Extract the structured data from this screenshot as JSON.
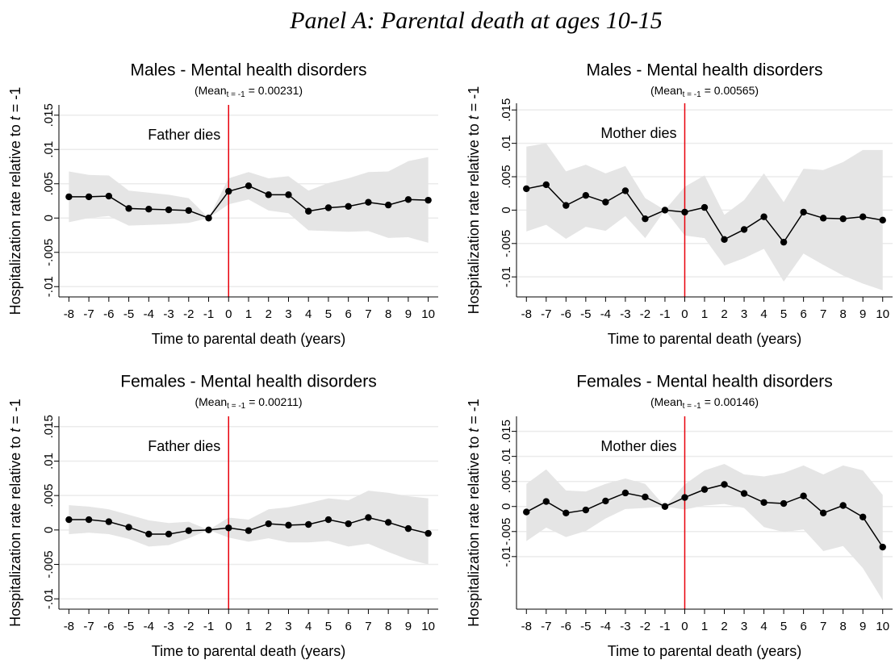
{
  "title": "Panel A: Parental death at ages 10-15",
  "chart_data": [
    {
      "type": "line",
      "title": "Males - Mental health disorders",
      "subtitle_parts": [
        "(Mean",
        "t = -1",
        "= 0.00231)"
      ],
      "ylabel_parts": [
        "Hospitalization rate relative to",
        "t",
        "= -1"
      ],
      "xlabel": "Time to parental death (years)",
      "annotation": "Father dies",
      "annotation_color": "#e8000b",
      "vline_x": 0,
      "x": [
        -8,
        -7,
        -6,
        -5,
        -4,
        -3,
        -2,
        -1,
        0,
        1,
        2,
        3,
        4,
        5,
        6,
        7,
        8,
        9,
        10
      ],
      "values": [
        0.0031,
        0.0031,
        0.0032,
        0.0014,
        0.0013,
        0.0012,
        0.0011,
        0,
        0.0039,
        0.0047,
        0.0034,
        0.0034,
        0.001,
        0.0015,
        0.0017,
        0.0023,
        0.0019,
        0.0027,
        0.0026
      ],
      "color": "#000000",
      "band": {
        "color": "#e5e5e5",
        "lower": [
          -0.0006,
          0,
          0.0003,
          -0.0011,
          -0.001,
          -0.0009,
          -0.0007,
          0,
          0.002,
          0.0027,
          0.0011,
          0.0007,
          -0.0018,
          -0.0019,
          -0.002,
          -0.0019,
          -0.0029,
          -0.0028,
          -0.0036
        ],
        "upper": [
          0.0068,
          0.0063,
          0.0062,
          0.004,
          0.0037,
          0.0034,
          0.0029,
          0,
          0.0058,
          0.0067,
          0.0058,
          0.0061,
          0.004,
          0.0051,
          0.0058,
          0.0067,
          0.0068,
          0.0083,
          0.0089
        ]
      },
      "xlim": [
        -8.5,
        10.5
      ],
      "ylim": [
        -0.0115,
        0.0165
      ],
      "xticks": [
        -8,
        -7,
        -6,
        -5,
        -4,
        -3,
        -2,
        -1,
        0,
        1,
        2,
        3,
        4,
        5,
        6,
        7,
        8,
        9,
        10
      ],
      "yticks": [
        {
          "value": -0.01,
          "label": "-.01"
        },
        {
          "value": -0.005,
          "label": "-.005"
        },
        0,
        {
          "value": 0.005,
          "label": ".005"
        },
        {
          "value": 0.01,
          "label": ".01"
        },
        {
          "value": 0.015,
          "label": ".015"
        }
      ],
      "grid": true
    },
    {
      "type": "line",
      "title": "Males - Mental health disorders",
      "subtitle_parts": [
        "(Mean",
        "t = -1",
        "= 0.00565)"
      ],
      "ylabel_parts": [
        "Hospitalization rate relative to",
        "t",
        "= -1"
      ],
      "xlabel": "Time to parental death (years)",
      "annotation": "Mother dies",
      "annotation_color": "#e8000b",
      "vline_x": 0,
      "x": [
        -8,
        -7,
        -6,
        -5,
        -4,
        -3,
        -2,
        -1,
        0,
        1,
        2,
        3,
        4,
        5,
        6,
        7,
        8,
        9,
        10
      ],
      "values": [
        0.0032,
        0.0038,
        0.0007,
        0.0022,
        0.0012,
        0.0029,
        -0.0013,
        0,
        -0.0003,
        0.0004,
        -0.0044,
        -0.0029,
        -0.001,
        -0.0048,
        -0.0003,
        -0.0012,
        -0.0013,
        -0.001,
        -0.0015
      ],
      "color": "#000000",
      "band": {
        "color": "#e5e5e5",
        "lower": [
          -0.0032,
          -0.0022,
          -0.0043,
          -0.0025,
          -0.0031,
          -0.0009,
          -0.0042,
          0,
          -0.0038,
          -0.0042,
          -0.0083,
          -0.0072,
          -0.0058,
          -0.0107,
          -0.0065,
          -0.0082,
          -0.0098,
          -0.011,
          -0.012
        ],
        "upper": [
          0.0095,
          0.01,
          0.0058,
          0.0068,
          0.0055,
          0.0066,
          0.0018,
          0,
          0.0035,
          0.0052,
          -0.0007,
          0.0015,
          0.0055,
          0.0012,
          0.0062,
          0.006,
          0.0072,
          0.009,
          0.009
        ]
      },
      "xlim": [
        -8.5,
        10.5
      ],
      "ylim": [
        -0.013,
        0.016
      ],
      "xticks": [
        -8,
        -7,
        -6,
        -5,
        -4,
        -3,
        -2,
        -1,
        0,
        1,
        2,
        3,
        4,
        5,
        6,
        7,
        8,
        9,
        10
      ],
      "yticks": [
        {
          "value": -0.01,
          "label": "-.01"
        },
        {
          "value": -0.005,
          "label": "-.005"
        },
        0,
        {
          "value": 0.005,
          "label": ".005"
        },
        {
          "value": 0.01,
          "label": ".01"
        },
        {
          "value": 0.015,
          "label": ".015"
        }
      ],
      "grid": true
    },
    {
      "type": "line",
      "title": "Females - Mental health disorders",
      "subtitle_parts": [
        "(Mean",
        "t = -1",
        "= 0.00211)"
      ],
      "ylabel_parts": [
        "Hospitalization rate relative to",
        "t",
        "= -1"
      ],
      "xlabel": "Time to parental death (years)",
      "annotation": "Father dies",
      "annotation_color": "#e8000b",
      "vline_x": 0,
      "x": [
        -8,
        -7,
        -6,
        -5,
        -4,
        -3,
        -2,
        -1,
        0,
        1,
        2,
        3,
        4,
        5,
        6,
        7,
        8,
        9,
        10
      ],
      "values": [
        0.0015,
        0.0015,
        0.0012,
        0.0004,
        -0.0006,
        -0.0006,
        -0.0001,
        0,
        0.0003,
        -0.0001,
        0.0009,
        0.0007,
        0.0008,
        0.0015,
        0.0009,
        0.0018,
        0.0011,
        0.0002,
        -0.0005
      ],
      "color": "#000000",
      "band": {
        "color": "#e5e5e5",
        "lower": [
          -0.0006,
          -0.0004,
          -0.0006,
          -0.0013,
          -0.0024,
          -0.0022,
          -0.0012,
          0,
          -0.0011,
          -0.0017,
          -0.0012,
          -0.0018,
          -0.0018,
          -0.0016,
          -0.0024,
          -0.002,
          -0.0032,
          -0.0043,
          -0.005
        ],
        "upper": [
          0.0036,
          0.0034,
          0.003,
          0.0022,
          0.0014,
          0.001,
          0.0012,
          0,
          0.0018,
          0.0015,
          0.003,
          0.0033,
          0.0039,
          0.0046,
          0.0043,
          0.0057,
          0.0054,
          0.0049,
          0.0046
        ]
      },
      "xlim": [
        -8.5,
        10.5
      ],
      "ylim": [
        -0.0115,
        0.0165
      ],
      "xticks": [
        -8,
        -7,
        -6,
        -5,
        -4,
        -3,
        -2,
        -1,
        0,
        1,
        2,
        3,
        4,
        5,
        6,
        7,
        8,
        9,
        10
      ],
      "yticks": [
        {
          "value": -0.01,
          "label": "-.01"
        },
        {
          "value": -0.005,
          "label": "-.005"
        },
        0,
        {
          "value": 0.005,
          "label": ".005"
        },
        {
          "value": 0.01,
          "label": ".01"
        },
        {
          "value": 0.015,
          "label": ".015"
        }
      ],
      "grid": true
    },
    {
      "type": "line",
      "title": "Females - Mental health disorders",
      "subtitle_parts": [
        "(Mean",
        "t = -1",
        "= 0.00146)"
      ],
      "ylabel_parts": [
        "Hospitalization rate relative to",
        "t",
        "= -1"
      ],
      "xlabel": "Time to parental death (years)",
      "annotation": "Mother dies",
      "annotation_color": "#e8000b",
      "vline_x": 0,
      "x": [
        -8,
        -7,
        -6,
        -5,
        -4,
        -3,
        -2,
        -1,
        0,
        1,
        2,
        3,
        4,
        5,
        6,
        7,
        8,
        9,
        10
      ],
      "values": [
        -0.0011,
        0.001,
        -0.0013,
        -0.0007,
        0.0011,
        0.0027,
        0.0019,
        0,
        0.0018,
        0.0034,
        0.0044,
        0.0026,
        0.0008,
        0.0006,
        0.0021,
        -0.0013,
        0.0002,
        -0.0021,
        -0.0081
      ],
      "color": "#000000",
      "band": {
        "color": "#e5e5e5",
        "lower": [
          -0.0069,
          -0.0042,
          -0.0061,
          -0.0049,
          -0.0024,
          -0.0005,
          -0.0003,
          0,
          -0.0006,
          0.0002,
          0.0005,
          -0.0003,
          -0.0041,
          -0.0051,
          -0.0046,
          -0.0089,
          -0.0079,
          -0.0123,
          -0.0187
        ],
        "upper": [
          0.0045,
          0.0074,
          0.0032,
          0.003,
          0.0045,
          0.0056,
          0.0045,
          0,
          0.0044,
          0.0072,
          0.0085,
          0.0064,
          0.006,
          0.0067,
          0.0082,
          0.0064,
          0.0082,
          0.0072,
          0.0023
        ]
      },
      "xlim": [
        -8.5,
        10.5
      ],
      "ylim": [
        -0.0205,
        0.018
      ],
      "xticks": [
        -8,
        -7,
        -6,
        -5,
        -4,
        -3,
        -2,
        -1,
        0,
        1,
        2,
        3,
        4,
        5,
        6,
        7,
        8,
        9,
        10
      ],
      "yticks": [
        {
          "value": -0.01,
          "label": "-.01"
        },
        {
          "value": -0.005,
          "label": "-.005"
        },
        0,
        {
          "value": 0.005,
          "label": ".005"
        },
        {
          "value": 0.01,
          "label": ".01"
        },
        {
          "value": 0.015,
          "label": ".015"
        }
      ],
      "grid": true
    }
  ]
}
